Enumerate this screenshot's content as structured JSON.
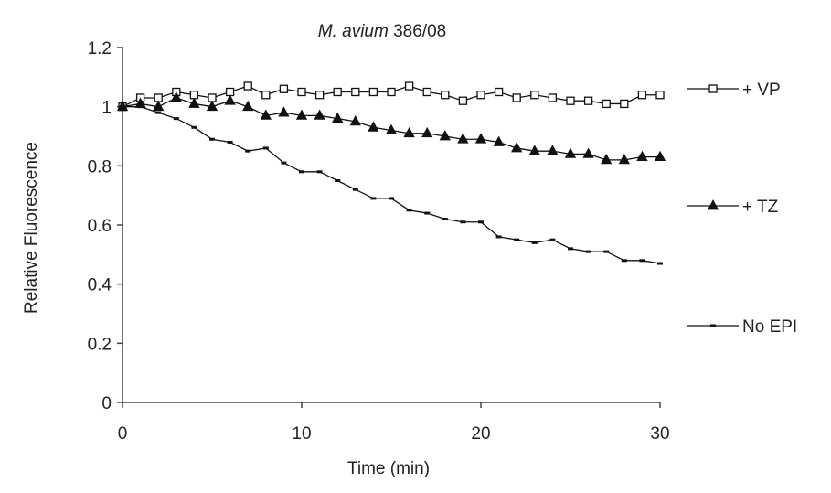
{
  "chart_data": {
    "type": "line",
    "title_italic": "M. avium",
    "title_rest": " 386/08",
    "xlabel": "Time (min)",
    "ylabel": "Relative Fluorescence",
    "xlim": [
      0,
      30
    ],
    "ylim": [
      0,
      1.2
    ],
    "x_ticks": [
      0,
      10,
      20,
      30
    ],
    "y_ticks": [
      0,
      0.2,
      0.4,
      0.6,
      0.8,
      1,
      1.2
    ],
    "grid": false,
    "legend_position": "right",
    "x": [
      0,
      1,
      2,
      3,
      4,
      5,
      6,
      7,
      8,
      9,
      10,
      11,
      12,
      13,
      14,
      15,
      16,
      17,
      18,
      19,
      20,
      21,
      22,
      23,
      24,
      25,
      26,
      27,
      28,
      29,
      30
    ],
    "series": [
      {
        "name": "+ VP",
        "marker": "open-square",
        "values": [
          1.0,
          1.03,
          1.03,
          1.05,
          1.04,
          1.03,
          1.05,
          1.07,
          1.04,
          1.06,
          1.05,
          1.04,
          1.05,
          1.05,
          1.05,
          1.05,
          1.07,
          1.05,
          1.04,
          1.02,
          1.04,
          1.05,
          1.03,
          1.04,
          1.03,
          1.02,
          1.02,
          1.01,
          1.01,
          1.04,
          1.04
        ]
      },
      {
        "name": "+ TZ",
        "marker": "filled-triangle",
        "values": [
          1.0,
          1.01,
          1.0,
          1.03,
          1.01,
          1.0,
          1.02,
          1.0,
          0.97,
          0.98,
          0.97,
          0.97,
          0.96,
          0.95,
          0.93,
          0.92,
          0.91,
          0.91,
          0.9,
          0.89,
          0.89,
          0.88,
          0.86,
          0.85,
          0.85,
          0.84,
          0.84,
          0.82,
          0.82,
          0.83,
          0.83
        ]
      },
      {
        "name": "No EPI",
        "marker": "small-dash",
        "values": [
          1.0,
          1.0,
          0.98,
          0.96,
          0.93,
          0.89,
          0.88,
          0.85,
          0.86,
          0.81,
          0.78,
          0.78,
          0.75,
          0.72,
          0.69,
          0.69,
          0.65,
          0.64,
          0.62,
          0.61,
          0.61,
          0.56,
          0.55,
          0.54,
          0.55,
          0.52,
          0.51,
          0.51,
          0.48,
          0.48,
          0.47
        ]
      }
    ]
  }
}
